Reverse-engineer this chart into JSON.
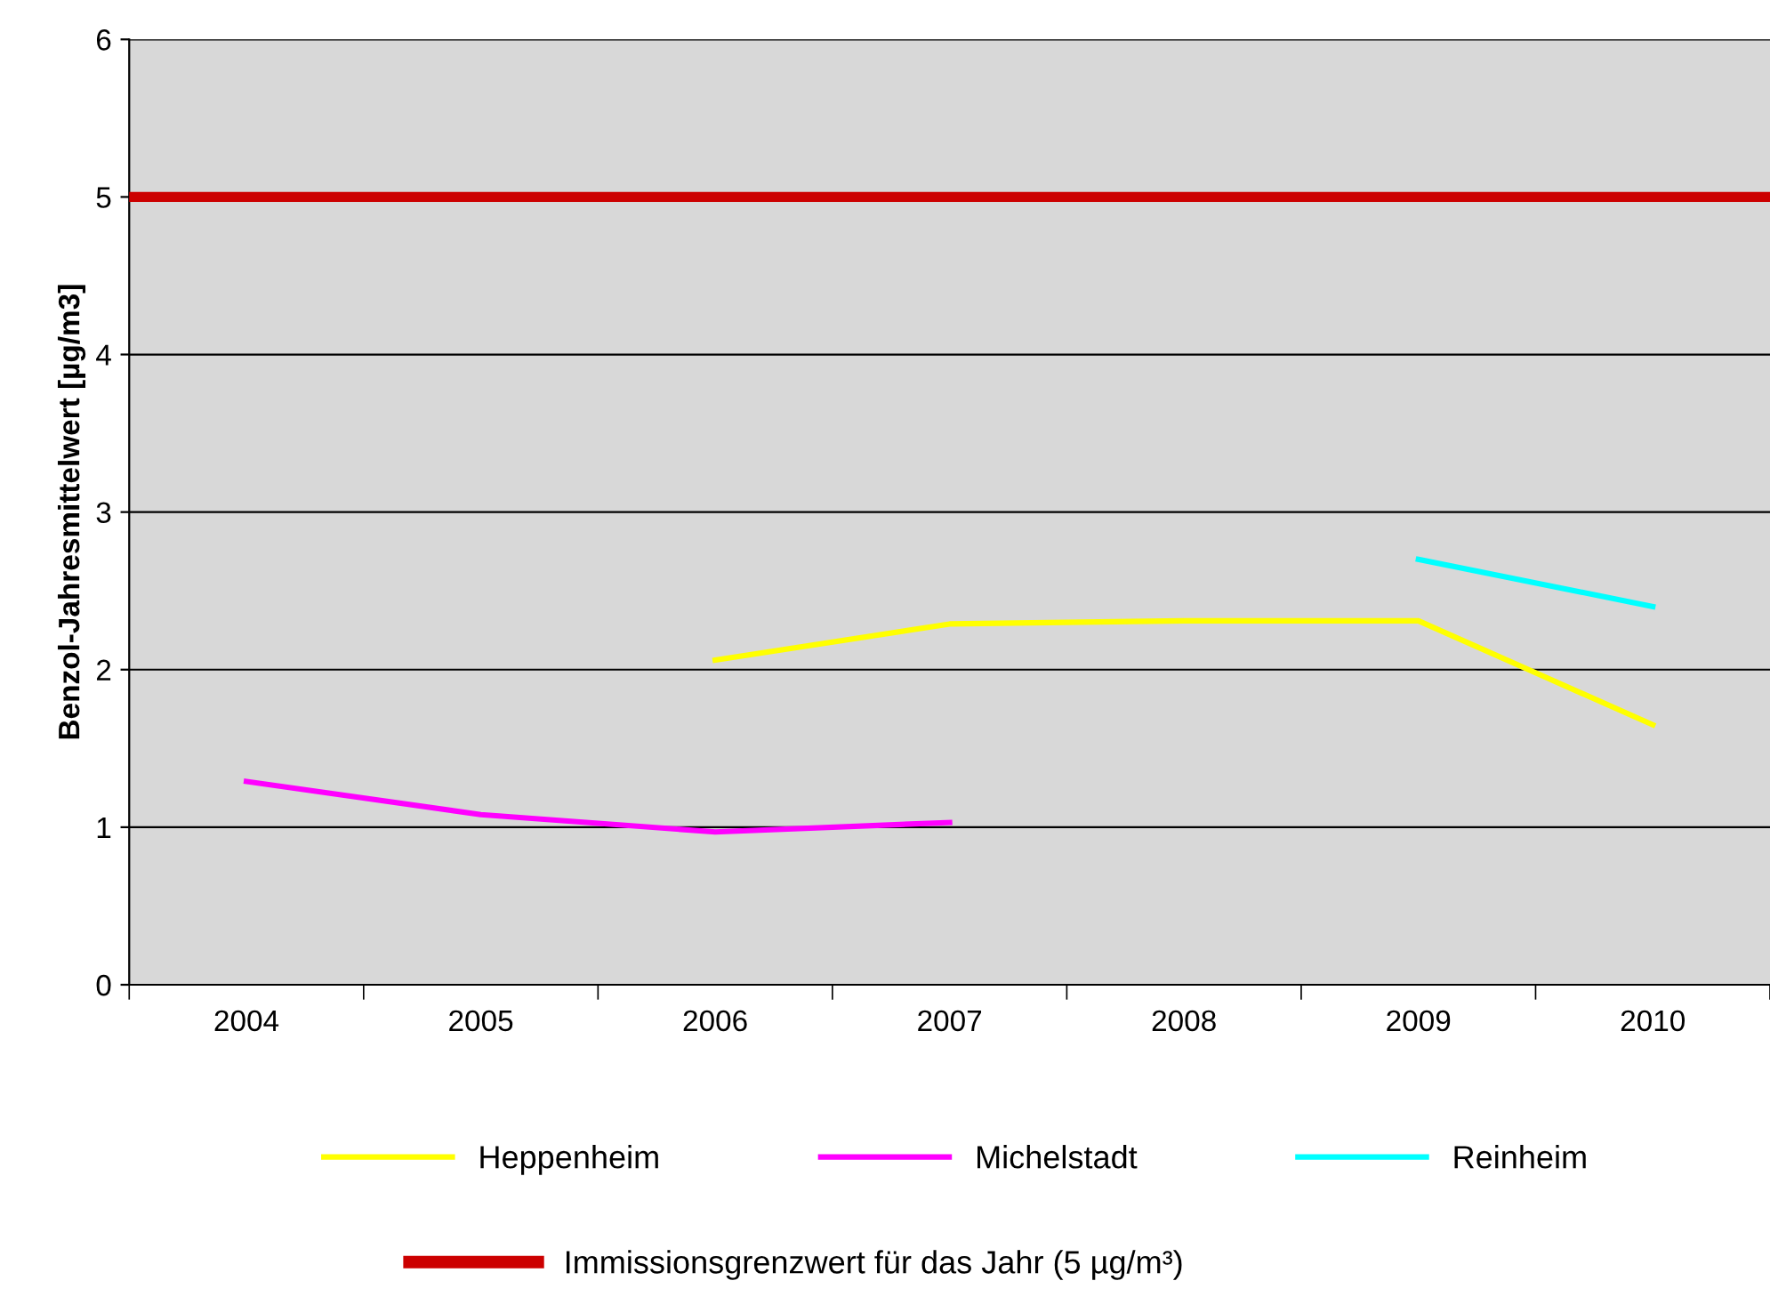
{
  "chart_data": {
    "type": "line",
    "ylabel": "Benzol-Jahresmittelwert [µg/m3]",
    "categories": [
      "2004",
      "2005",
      "2006",
      "2007",
      "2008",
      "2009",
      "2010"
    ],
    "series": [
      {
        "name": "Heppenheim",
        "color": "#ffff00",
        "values": [
          null,
          null,
          2.06,
          2.29,
          2.31,
          2.31,
          1.65
        ]
      },
      {
        "name": "Michelstadt",
        "color": "#ff00ff",
        "values": [
          1.29,
          1.08,
          0.97,
          1.03,
          null,
          null,
          null
        ]
      },
      {
        "name": "Reinheim",
        "color": "#00ffff",
        "values": [
          null,
          null,
          null,
          null,
          null,
          2.7,
          2.4
        ]
      }
    ],
    "ref_lines": [
      {
        "axis": "y",
        "value": 5,
        "label": "Immissionsgrenzwert für das Jahr (5 µg/m³)",
        "color": "#cc0000"
      }
    ],
    "ylim": [
      0,
      6
    ],
    "yticks": [
      0,
      1,
      2,
      3,
      4,
      5,
      6
    ],
    "grid": "y",
    "legend": "bottom",
    "marker": "none",
    "line_style": "solid"
  }
}
